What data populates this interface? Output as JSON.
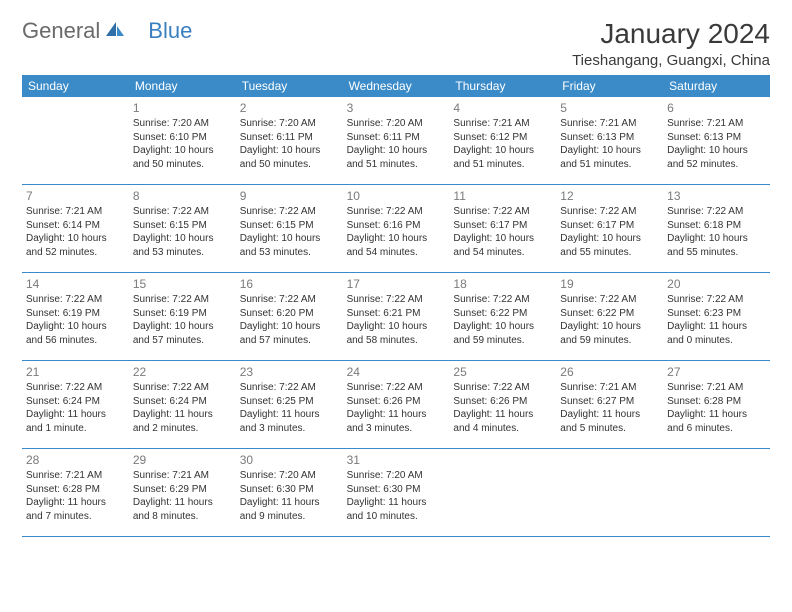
{
  "brand": {
    "text_general": "General",
    "text_blue": "Blue"
  },
  "title": "January 2024",
  "location": "Tieshangang, Guangxi, China",
  "colors": {
    "header_bg": "#3b8bc9",
    "header_text": "#ffffff",
    "border": "#3b8bc9",
    "daynum": "#7a7a7a",
    "body_text": "#333333",
    "logo_gray": "#6a6a6a",
    "logo_blue": "#3a7fbf"
  },
  "day_names": [
    "Sunday",
    "Monday",
    "Tuesday",
    "Wednesday",
    "Thursday",
    "Friday",
    "Saturday"
  ],
  "start_offset": 1,
  "days": [
    {
      "n": "1",
      "sr": "Sunrise: 7:20 AM",
      "ss": "Sunset: 6:10 PM",
      "dl1": "Daylight: 10 hours",
      "dl2": "and 50 minutes."
    },
    {
      "n": "2",
      "sr": "Sunrise: 7:20 AM",
      "ss": "Sunset: 6:11 PM",
      "dl1": "Daylight: 10 hours",
      "dl2": "and 50 minutes."
    },
    {
      "n": "3",
      "sr": "Sunrise: 7:20 AM",
      "ss": "Sunset: 6:11 PM",
      "dl1": "Daylight: 10 hours",
      "dl2": "and 51 minutes."
    },
    {
      "n": "4",
      "sr": "Sunrise: 7:21 AM",
      "ss": "Sunset: 6:12 PM",
      "dl1": "Daylight: 10 hours",
      "dl2": "and 51 minutes."
    },
    {
      "n": "5",
      "sr": "Sunrise: 7:21 AM",
      "ss": "Sunset: 6:13 PM",
      "dl1": "Daylight: 10 hours",
      "dl2": "and 51 minutes."
    },
    {
      "n": "6",
      "sr": "Sunrise: 7:21 AM",
      "ss": "Sunset: 6:13 PM",
      "dl1": "Daylight: 10 hours",
      "dl2": "and 52 minutes."
    },
    {
      "n": "7",
      "sr": "Sunrise: 7:21 AM",
      "ss": "Sunset: 6:14 PM",
      "dl1": "Daylight: 10 hours",
      "dl2": "and 52 minutes."
    },
    {
      "n": "8",
      "sr": "Sunrise: 7:22 AM",
      "ss": "Sunset: 6:15 PM",
      "dl1": "Daylight: 10 hours",
      "dl2": "and 53 minutes."
    },
    {
      "n": "9",
      "sr": "Sunrise: 7:22 AM",
      "ss": "Sunset: 6:15 PM",
      "dl1": "Daylight: 10 hours",
      "dl2": "and 53 minutes."
    },
    {
      "n": "10",
      "sr": "Sunrise: 7:22 AM",
      "ss": "Sunset: 6:16 PM",
      "dl1": "Daylight: 10 hours",
      "dl2": "and 54 minutes."
    },
    {
      "n": "11",
      "sr": "Sunrise: 7:22 AM",
      "ss": "Sunset: 6:17 PM",
      "dl1": "Daylight: 10 hours",
      "dl2": "and 54 minutes."
    },
    {
      "n": "12",
      "sr": "Sunrise: 7:22 AM",
      "ss": "Sunset: 6:17 PM",
      "dl1": "Daylight: 10 hours",
      "dl2": "and 55 minutes."
    },
    {
      "n": "13",
      "sr": "Sunrise: 7:22 AM",
      "ss": "Sunset: 6:18 PM",
      "dl1": "Daylight: 10 hours",
      "dl2": "and 55 minutes."
    },
    {
      "n": "14",
      "sr": "Sunrise: 7:22 AM",
      "ss": "Sunset: 6:19 PM",
      "dl1": "Daylight: 10 hours",
      "dl2": "and 56 minutes."
    },
    {
      "n": "15",
      "sr": "Sunrise: 7:22 AM",
      "ss": "Sunset: 6:19 PM",
      "dl1": "Daylight: 10 hours",
      "dl2": "and 57 minutes."
    },
    {
      "n": "16",
      "sr": "Sunrise: 7:22 AM",
      "ss": "Sunset: 6:20 PM",
      "dl1": "Daylight: 10 hours",
      "dl2": "and 57 minutes."
    },
    {
      "n": "17",
      "sr": "Sunrise: 7:22 AM",
      "ss": "Sunset: 6:21 PM",
      "dl1": "Daylight: 10 hours",
      "dl2": "and 58 minutes."
    },
    {
      "n": "18",
      "sr": "Sunrise: 7:22 AM",
      "ss": "Sunset: 6:22 PM",
      "dl1": "Daylight: 10 hours",
      "dl2": "and 59 minutes."
    },
    {
      "n": "19",
      "sr": "Sunrise: 7:22 AM",
      "ss": "Sunset: 6:22 PM",
      "dl1": "Daylight: 10 hours",
      "dl2": "and 59 minutes."
    },
    {
      "n": "20",
      "sr": "Sunrise: 7:22 AM",
      "ss": "Sunset: 6:23 PM",
      "dl1": "Daylight: 11 hours",
      "dl2": "and 0 minutes."
    },
    {
      "n": "21",
      "sr": "Sunrise: 7:22 AM",
      "ss": "Sunset: 6:24 PM",
      "dl1": "Daylight: 11 hours",
      "dl2": "and 1 minute."
    },
    {
      "n": "22",
      "sr": "Sunrise: 7:22 AM",
      "ss": "Sunset: 6:24 PM",
      "dl1": "Daylight: 11 hours",
      "dl2": "and 2 minutes."
    },
    {
      "n": "23",
      "sr": "Sunrise: 7:22 AM",
      "ss": "Sunset: 6:25 PM",
      "dl1": "Daylight: 11 hours",
      "dl2": "and 3 minutes."
    },
    {
      "n": "24",
      "sr": "Sunrise: 7:22 AM",
      "ss": "Sunset: 6:26 PM",
      "dl1": "Daylight: 11 hours",
      "dl2": "and 3 minutes."
    },
    {
      "n": "25",
      "sr": "Sunrise: 7:22 AM",
      "ss": "Sunset: 6:26 PM",
      "dl1": "Daylight: 11 hours",
      "dl2": "and 4 minutes."
    },
    {
      "n": "26",
      "sr": "Sunrise: 7:21 AM",
      "ss": "Sunset: 6:27 PM",
      "dl1": "Daylight: 11 hours",
      "dl2": "and 5 minutes."
    },
    {
      "n": "27",
      "sr": "Sunrise: 7:21 AM",
      "ss": "Sunset: 6:28 PM",
      "dl1": "Daylight: 11 hours",
      "dl2": "and 6 minutes."
    },
    {
      "n": "28",
      "sr": "Sunrise: 7:21 AM",
      "ss": "Sunset: 6:28 PM",
      "dl1": "Daylight: 11 hours",
      "dl2": "and 7 minutes."
    },
    {
      "n": "29",
      "sr": "Sunrise: 7:21 AM",
      "ss": "Sunset: 6:29 PM",
      "dl1": "Daylight: 11 hours",
      "dl2": "and 8 minutes."
    },
    {
      "n": "30",
      "sr": "Sunrise: 7:20 AM",
      "ss": "Sunset: 6:30 PM",
      "dl1": "Daylight: 11 hours",
      "dl2": "and 9 minutes."
    },
    {
      "n": "31",
      "sr": "Sunrise: 7:20 AM",
      "ss": "Sunset: 6:30 PM",
      "dl1": "Daylight: 11 hours",
      "dl2": "and 10 minutes."
    }
  ]
}
